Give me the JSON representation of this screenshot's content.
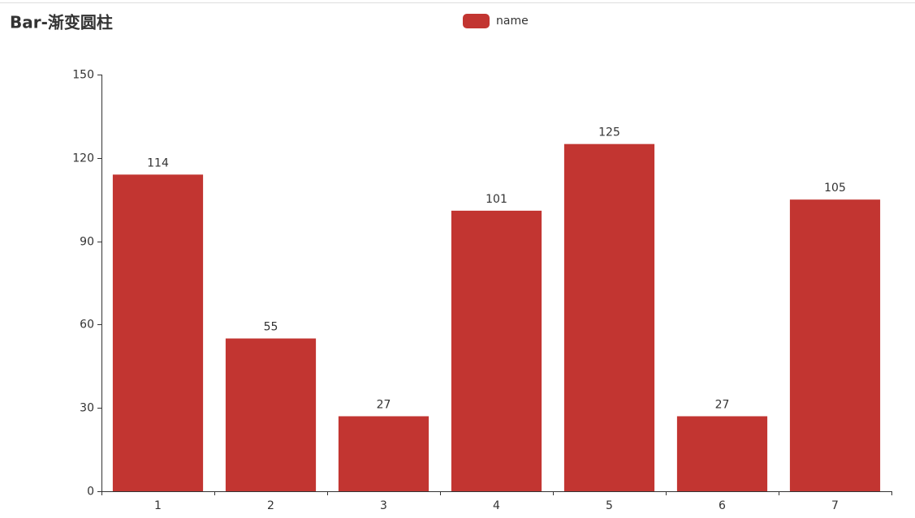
{
  "chart_data": {
    "type": "bar",
    "title": "Bar-渐变圆柱",
    "categories": [
      "1",
      "2",
      "3",
      "4",
      "5",
      "6",
      "7"
    ],
    "series": [
      {
        "name": "name",
        "color": "#c23531",
        "values": [
          114,
          55,
          27,
          101,
          125,
          27,
          105
        ]
      }
    ],
    "ylim": [
      0,
      150
    ],
    "yticks": [
      0,
      30,
      60,
      90,
      120,
      150
    ],
    "grid": false,
    "legend": "top"
  }
}
